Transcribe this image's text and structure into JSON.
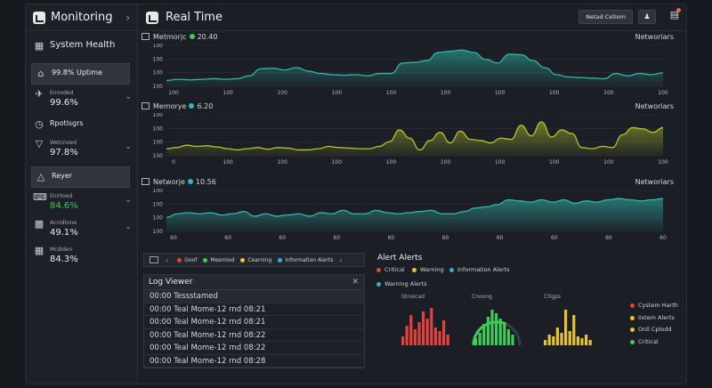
{
  "sidebar": {
    "title": "Monitoring",
    "items": [
      {
        "label": "System Health"
      },
      {
        "label": "99.8% Uptime"
      },
      {
        "label": "Ennoded",
        "value": "99.6%"
      },
      {
        "label": "Rpotlsgrs"
      },
      {
        "label": "Wetcnoed",
        "value": "97.8%"
      },
      {
        "label": "Reyer"
      },
      {
        "label": "Enirtoed",
        "value": "84.6%"
      },
      {
        "label": "Acnidtone",
        "value": "49.1%"
      },
      {
        "label": "Mcdiden",
        "value": "84.3%"
      }
    ]
  },
  "topbar": {
    "title": "Real Time",
    "button": "Netad Cetiom"
  },
  "charts": [
    {
      "title": "Metmorjc",
      "value": "20.40",
      "right": "Networiars",
      "dot": "#3ccc5a",
      "stroke": "#2fb7a8",
      "yticks": [
        "100",
        "100",
        "100",
        "100"
      ],
      "xticks": [
        "100",
        "100",
        "100",
        "100",
        "100",
        "100",
        "100",
        "100",
        "100",
        "100"
      ],
      "values": [
        10,
        12,
        11,
        12,
        13,
        12,
        13,
        18,
        30,
        31,
        28,
        32,
        26,
        22,
        20,
        19,
        20,
        18,
        22,
        22,
        40,
        41,
        44,
        58,
        60,
        62,
        58,
        46,
        40,
        55,
        54,
        44,
        32,
        20,
        16,
        15,
        14,
        13,
        22,
        18,
        22,
        20,
        23
      ]
    },
    {
      "title": "Memorye",
      "value": "6.20",
      "right": "Networiars",
      "dot": "#2bb5c8",
      "stroke": "#b7c42a",
      "yticks": [
        "100",
        "100",
        "100",
        "100"
      ],
      "xticks": [
        "0",
        "100",
        "100",
        "100",
        "100",
        "100",
        "100",
        "100",
        "100",
        "100"
      ],
      "values": [
        12,
        14,
        18,
        16,
        17,
        15,
        12,
        10,
        12,
        14,
        11,
        14,
        13,
        10,
        10,
        12,
        16,
        14,
        13,
        12,
        12,
        16,
        24,
        44,
        30,
        10,
        26,
        40,
        22,
        42,
        28,
        26,
        22,
        30,
        28,
        52,
        34,
        58,
        32,
        44,
        38,
        14,
        12,
        16,
        14,
        36,
        48,
        46,
        40,
        48
      ]
    },
    {
      "title": "Networje",
      "value": "10.56",
      "right": "Networiars",
      "dot": "#2bb5c8",
      "stroke": "#31b9ae",
      "yticks": [
        "100",
        "100",
        "100",
        "100"
      ],
      "xticks": [
        "60",
        "60",
        "60",
        "60",
        "60",
        "60",
        "60",
        "60",
        "60",
        "60"
      ],
      "values": [
        24,
        30,
        32,
        30,
        32,
        28,
        30,
        34,
        26,
        30,
        26,
        28,
        30,
        26,
        32,
        30,
        36,
        30,
        30,
        36,
        32,
        30,
        32,
        34,
        36,
        30,
        30,
        34,
        40,
        42,
        46,
        54,
        52,
        50,
        54,
        50,
        54,
        48,
        52,
        50,
        54,
        56,
        54,
        52,
        54,
        56
      ]
    }
  ],
  "logbar": {
    "items": [
      {
        "label": "Goof",
        "color": "#e0433e"
      },
      {
        "label": "Mesmiod",
        "color": "#3ccc5a"
      },
      {
        "label": "Cearning",
        "color": "#e6c431"
      },
      {
        "label": "Information Alerts",
        "color": "#2bb5c8"
      }
    ]
  },
  "logviewer": {
    "title": "Log Viewer",
    "rows": [
      "00:00 Tessstamed",
      "00:00 Teal Mome-12 rnd 08:21",
      "00:00 Teal Mome-12 rnd 08:21",
      "00:00 Teal Mome-12 rnd 08:22",
      "00:00 Teal Mome-12 rnd 08:22",
      "00:00 Teal Mome-12 rnd 08:28"
    ]
  },
  "alerts": {
    "title": "Alert Alerts",
    "legend_top": [
      {
        "label": "Critical",
        "color": "#e0433e"
      },
      {
        "label": "Warning",
        "color": "#e6c431"
      },
      {
        "label": "Information Alerts",
        "color": "#2bb5c8"
      },
      {
        "label": "Warning Alerts",
        "color": "#2bb5c8"
      }
    ],
    "panels": [
      {
        "label": "Stnoicad",
        "color": "#e0433e",
        "values": [
          10,
          22,
          34,
          18,
          26,
          38,
          30,
          42,
          20,
          16,
          28,
          12
        ]
      },
      {
        "label": "Cnoong",
        "color": "#3ccc5a",
        "values": [
          8,
          14,
          24,
          32,
          40,
          36,
          30,
          26,
          18,
          12
        ]
      },
      {
        "label": "Ctlgps",
        "color": "#e6c431",
        "values": [
          6,
          12,
          10,
          20,
          14,
          40,
          16,
          34,
          10,
          8,
          12,
          6
        ]
      }
    ],
    "legend_right": [
      {
        "label": "Cystem Harth",
        "color": "#e0433e"
      },
      {
        "label": "Iistem Alerts",
        "color": "#e6c431"
      },
      {
        "label": "Onll Cplodd",
        "color": "#e6c431"
      },
      {
        "label": "Critical",
        "color": "#3ccc5a"
      }
    ]
  }
}
